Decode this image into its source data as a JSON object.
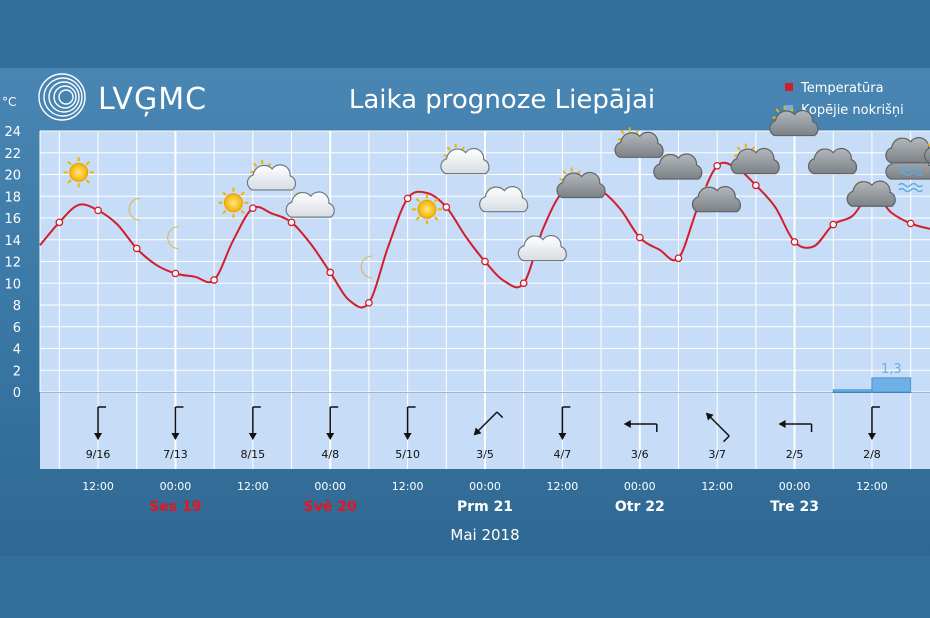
{
  "header": {
    "logo_text": "LVĢMC",
    "title": "Laika prognoze Liepājai"
  },
  "legend": {
    "temperature": "Temperatūra",
    "precipitation": "Kopējie nokrišņi"
  },
  "colors": {
    "background": "#336f99",
    "plot_background": "#c7dcf7",
    "temperature_line": "#d21e2a",
    "precipitation_bar": "#6fb0e6",
    "weekend_day": "#e8141e",
    "weekday": "#ffffff"
  },
  "chart_data": {
    "type": "line",
    "y_unit": "°C",
    "ylim": [
      0,
      24
    ],
    "y_ticks": [
      0,
      2,
      4,
      6,
      8,
      10,
      12,
      14,
      16,
      18,
      20,
      22,
      24
    ],
    "x_unit": "hours",
    "xlim": [
      3,
      141
    ],
    "grid": true,
    "legend_position": "top-right",
    "temperature_series": {
      "name": "Temperatūra",
      "points": [
        [
          3,
          13.5
        ],
        [
          6,
          15.6
        ],
        [
          9,
          17.2
        ],
        [
          12,
          16.7
        ],
        [
          15,
          15.4
        ],
        [
          18,
          13.2
        ],
        [
          21,
          11.7
        ],
        [
          24,
          10.9
        ],
        [
          27,
          10.6
        ],
        [
          30,
          10.3
        ],
        [
          33,
          14.0
        ],
        [
          36,
          16.9
        ],
        [
          39,
          16.4
        ],
        [
          42,
          15.6
        ],
        [
          45,
          13.6
        ],
        [
          48,
          11.0
        ],
        [
          51,
          8.4
        ],
        [
          54,
          8.2
        ],
        [
          57,
          13.4
        ],
        [
          60,
          17.8
        ],
        [
          63,
          18.3
        ],
        [
          66,
          17.0
        ],
        [
          69,
          14.3
        ],
        [
          72,
          12.0
        ],
        [
          75,
          10.2
        ],
        [
          78,
          10.0
        ],
        [
          81,
          15.0
        ],
        [
          84,
          18.4
        ],
        [
          87,
          18.9
        ],
        [
          90,
          18.5
        ],
        [
          93,
          16.8
        ],
        [
          96,
          14.2
        ],
        [
          99,
          13.1
        ],
        [
          102,
          12.3
        ],
        [
          105,
          17.0
        ],
        [
          108,
          20.8
        ],
        [
          111,
          20.6
        ],
        [
          114,
          19.0
        ],
        [
          117,
          17.0
        ],
        [
          120,
          13.8
        ],
        [
          123,
          13.4
        ],
        [
          126,
          15.4
        ],
        [
          129,
          16.2
        ],
        [
          132,
          18.3
        ],
        [
          135,
          16.5
        ],
        [
          138,
          15.5
        ],
        [
          141,
          15.0
        ]
      ]
    },
    "precipitation_series": {
      "name": "Kopējie nokrišņi",
      "bars": [
        {
          "x_start": 126,
          "x_end": 132,
          "value": 0.2,
          "label": ""
        },
        {
          "x_start": 132,
          "x_end": 138,
          "value": 1.3,
          "label": "1,3"
        }
      ]
    },
    "weather_icons": [
      {
        "x": 9,
        "y": 20.2,
        "icon": "sun"
      },
      {
        "x": 18,
        "y": 16.8,
        "icon": "moon"
      },
      {
        "x": 24,
        "y": 14.2,
        "icon": "moon"
      },
      {
        "x": 33,
        "y": 17.4,
        "icon": "sun"
      },
      {
        "x": 39,
        "y": 19.5,
        "icon": "partly-sunny-cloud"
      },
      {
        "x": 45,
        "y": 17.0,
        "icon": "moon-cloud"
      },
      {
        "x": 54,
        "y": 11.5,
        "icon": "moon"
      },
      {
        "x": 63,
        "y": 16.8,
        "icon": "sun"
      },
      {
        "x": 69,
        "y": 21.0,
        "icon": "partly-sunny-cloud"
      },
      {
        "x": 75,
        "y": 17.5,
        "icon": "moon-cloud"
      },
      {
        "x": 81,
        "y": 13.0,
        "icon": "moon-cloud"
      },
      {
        "x": 87,
        "y": 18.8,
        "icon": "partly-sunny-dark-cloud"
      },
      {
        "x": 96,
        "y": 22.5,
        "icon": "partly-sunny-dark-cloud"
      },
      {
        "x": 102,
        "y": 20.5,
        "icon": "moon-dark-cloud"
      },
      {
        "x": 108,
        "y": 17.5,
        "icon": "moon-dark-cloud"
      },
      {
        "x": 114,
        "y": 21.0,
        "icon": "partly-sunny-dark-cloud"
      },
      {
        "x": 120,
        "y": 24.5,
        "icon": "partly-sunny-dark-cloud"
      },
      {
        "x": 126,
        "y": 21.0,
        "icon": "moon-dark-cloud"
      },
      {
        "x": 132,
        "y": 18.0,
        "icon": "moon-dark-cloud"
      },
      {
        "x": 138,
        "y": 20.5,
        "icon": "dark-cloud-rain"
      },
      {
        "x": 138,
        "y": 22.0,
        "icon": "moon-dark-cloud-rain"
      },
      {
        "x": 144,
        "y": 22.0,
        "icon": "partly-sunny-dark-cloud-rain"
      }
    ],
    "wind": [
      {
        "x": 12,
        "label": "9/16",
        "direction_deg": 0
      },
      {
        "x": 24,
        "label": "7/13",
        "direction_deg": 0
      },
      {
        "x": 36,
        "label": "8/15",
        "direction_deg": 0
      },
      {
        "x": 48,
        "label": "4/8",
        "direction_deg": 0
      },
      {
        "x": 60,
        "label": "5/10",
        "direction_deg": 0
      },
      {
        "x": 72,
        "label": "3/5",
        "direction_deg": 45
      },
      {
        "x": 84,
        "label": "4/7",
        "direction_deg": 0
      },
      {
        "x": 96,
        "label": "3/6",
        "direction_deg": 90
      },
      {
        "x": 108,
        "label": "3/7",
        "direction_deg": 135
      },
      {
        "x": 120,
        "label": "2/5",
        "direction_deg": 90
      },
      {
        "x": 132,
        "label": "2/8",
        "direction_deg": 0
      }
    ],
    "x_time_ticks": [
      {
        "x": 12,
        "label": "12:00"
      },
      {
        "x": 24,
        "label": "00:00"
      },
      {
        "x": 36,
        "label": "12:00"
      },
      {
        "x": 48,
        "label": "00:00"
      },
      {
        "x": 60,
        "label": "12:00"
      },
      {
        "x": 72,
        "label": "00:00"
      },
      {
        "x": 84,
        "label": "12:00"
      },
      {
        "x": 96,
        "label": "00:00"
      },
      {
        "x": 108,
        "label": "12:00"
      },
      {
        "x": 120,
        "label": "00:00"
      },
      {
        "x": 132,
        "label": "12:00"
      }
    ],
    "day_labels": [
      {
        "x": 24,
        "label": "Ses 19",
        "weekend": true
      },
      {
        "x": 48,
        "label": "Svē 20",
        "weekend": true
      },
      {
        "x": 72,
        "label": "Prm 21",
        "weekend": false
      },
      {
        "x": 96,
        "label": "Otr 22",
        "weekend": false
      },
      {
        "x": 120,
        "label": "Tre 23",
        "weekend": false
      }
    ],
    "month_label": "Mai 2018"
  }
}
